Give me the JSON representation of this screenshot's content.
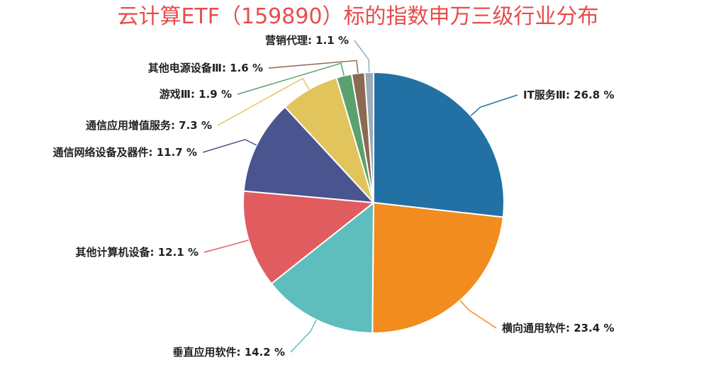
{
  "chart_data": {
    "type": "pie",
    "title": "云计算ETF（159890）标的指数申万三级行业分布",
    "slices": [
      {
        "name": "IT服务Ⅲ",
        "value": 26.8,
        "value_text": "26.8 %",
        "color": "#2371a4",
        "label_side": "right"
      },
      {
        "name": "横向通用软件",
        "value": 23.4,
        "value_text": "23.4 %",
        "color": "#f28c1e",
        "label_side": "right"
      },
      {
        "name": "垂直应用软件",
        "value": 14.2,
        "value_text": "14.2 %",
        "color": "#5fbdbd",
        "label_side": "left"
      },
      {
        "name": "其他计算机设备",
        "value": 12.1,
        "value_text": "12.1 %",
        "color": "#e05c5e",
        "label_side": "left"
      },
      {
        "name": "通信网络设备及器件",
        "value": 11.7,
        "value_text": "11.7 %",
        "color": "#4a5590",
        "label_side": "left"
      },
      {
        "name": "通信应用增值服务",
        "value": 7.3,
        "value_text": "7.3 %",
        "color": "#e2c45c",
        "label_side": "left"
      },
      {
        "name": "游戏Ⅲ",
        "value": 1.9,
        "value_text": "1.9 %",
        "color": "#5aa16e",
        "label_side": "left"
      },
      {
        "name": "其他电源设备Ⅲ",
        "value": 1.6,
        "value_text": "1.6 %",
        "color": "#8a6a52",
        "label_side": "left"
      },
      {
        "name": "营销代理",
        "value": 1.1,
        "value_text": "1.1 %",
        "color": "#9cabb5",
        "label_side": "left"
      }
    ]
  }
}
